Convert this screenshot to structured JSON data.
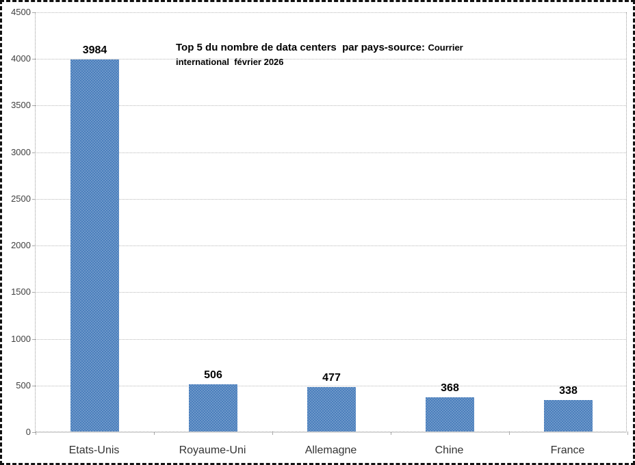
{
  "chart_data": {
    "type": "bar",
    "title": {
      "main": "Top 5 du nombre de data centers  par pays-source:",
      "source_line1": "Courrier",
      "source_line2": "international  février 2026"
    },
    "categories": [
      "Etats-Unis",
      "Royaume-Uni",
      "Allemagne",
      "Chine",
      "France"
    ],
    "values": [
      3984,
      506,
      477,
      368,
      338
    ],
    "ylim": [
      0,
      4500
    ],
    "ytick_step": 500,
    "ytick_labels": [
      "0",
      "500",
      "1000",
      "1500",
      "2000",
      "2500",
      "3000",
      "3500",
      "4000",
      "4500"
    ],
    "grid": true,
    "legend": "none",
    "colors": {
      "bar": "#4a7ebc",
      "bar_pattern_light": "#6b97cb",
      "gridline": "#b8b8b8",
      "axis": "#9a9a9a",
      "value_label": "#000000",
      "tick_label": "#3f3f3f",
      "category_label": "#333333",
      "frame_border": "#111111",
      "background": "#ffffff"
    }
  }
}
